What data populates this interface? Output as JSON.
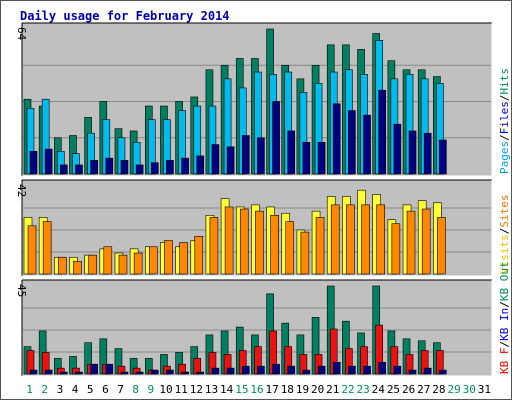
{
  "chart_data": {
    "title": "Daily usage for February 2014",
    "type": "bar",
    "x": [
      "1",
      "2",
      "3",
      "4",
      "5",
      "6",
      "7",
      "8",
      "9",
      "10",
      "11",
      "12",
      "13",
      "14",
      "15",
      "16",
      "17",
      "18",
      "19",
      "20",
      "21",
      "22",
      "23",
      "24",
      "25",
      "26",
      "27",
      "28",
      "29",
      "30",
      "31"
    ],
    "weekend_days": [
      1,
      2,
      8,
      9,
      15,
      16,
      22,
      23,
      29,
      30
    ],
    "panels": [
      {
        "max_label": "64",
        "ymax": 64,
        "side_labels": [
          {
            "text": "Pages",
            "color": "#00a0ff"
          },
          {
            "text": "/",
            "color": "#000000"
          },
          {
            "text": "Files",
            "color": "#0000dd"
          },
          {
            "text": "/",
            "color": "#000000"
          },
          {
            "text": "Hits",
            "color": "#008f5a"
          }
        ],
        "series": [
          {
            "name": "Hits",
            "color": "#008060",
            "values": [
              33,
              30,
              16,
              17,
              25,
              32,
              20,
              19,
              30,
              30,
              32,
              34,
              46,
              48,
              51,
              51,
              64,
              48,
              42,
              48,
              57,
              57,
              55,
              62,
              50,
              46,
              46,
              43
            ]
          },
          {
            "name": "Files",
            "color": "#00bbee",
            "values": [
              29,
              33,
              10,
              9,
              18,
              24,
              16,
              14,
              24,
              24,
              28,
              30,
              30,
              42,
              38,
              45,
              44,
              45,
              36,
              40,
              45,
              46,
              44,
              59,
              42,
              44,
              42,
              40
            ]
          },
          {
            "name": "Pages",
            "color": "#000080",
            "values": [
              10,
              11,
              4,
              4,
              6,
              7,
              6,
              4,
              5,
              6,
              7,
              8,
              13,
              12,
              17,
              16,
              32,
              19,
              14,
              14,
              31,
              28,
              26,
              37,
              22,
              19,
              18,
              15
            ]
          }
        ]
      },
      {
        "max_label": "42",
        "ymax": 42,
        "side_labels": [
          {
            "text": "Visits",
            "color": "#e6c800"
          },
          {
            "text": "/",
            "color": "#000000"
          },
          {
            "text": "Sites",
            "color": "#ff7700"
          }
        ],
        "series": [
          {
            "name": "Visits",
            "color": "#ffff33",
            "values": [
              27,
              27,
              8,
              8,
              9,
              12,
              10,
              12,
              13,
              15,
              13,
              16,
              28,
              36,
              32,
              33,
              32,
              29,
              21,
              30,
              37,
              37,
              40,
              38,
              26,
              33,
              35,
              34
            ]
          },
          {
            "name": "Sites",
            "color": "#ff8800",
            "values": [
              23,
              25,
              8,
              6,
              9,
              13,
              9,
              10,
              13,
              16,
              15,
              18,
              27,
              32,
              31,
              30,
              28,
              25,
              20,
              27,
              33,
              33,
              33,
              33,
              24,
              30,
              31,
              27
            ]
          }
        ]
      },
      {
        "max_label": "45",
        "ymax": 45,
        "side_labels": [
          {
            "text": "KB F",
            "color": "#ee0000"
          },
          {
            "text": "/",
            "color": "#000000"
          },
          {
            "text": "KB In",
            "color": "#0000dd"
          },
          {
            "text": "/",
            "color": "#000000"
          },
          {
            "text": "KB Out",
            "color": "#008f5a"
          }
        ],
        "series": [
          {
            "name": "KB Out",
            "color": "#008060",
            "values": [
              14,
              22,
              8,
              9,
              16,
              18,
              13,
              8,
              8,
              10,
              11,
              14,
              20,
              22,
              24,
              20,
              41,
              26,
              20,
              29,
              45,
              27,
              21,
              45,
              22,
              18,
              17,
              16
            ]
          },
          {
            "name": "KB F",
            "color": "#ee1111",
            "values": [
              12,
              11,
              3,
              3,
              5,
              5,
              4,
              3,
              2,
              4,
              5,
              8,
              11,
              10,
              12,
              14,
              22,
              14,
              10,
              10,
              23,
              13,
              14,
              25,
              14,
              10,
              12,
              12
            ]
          },
          {
            "name": "KB In",
            "color": "#000080",
            "values": [
              2,
              2,
              1,
              1,
              5,
              5,
              1,
              1,
              2,
              2,
              1,
              1,
              3,
              3,
              4,
              4,
              5,
              4,
              2,
              4,
              6,
              4,
              4,
              6,
              4,
              2,
              3,
              2
            ]
          }
        ]
      }
    ]
  }
}
